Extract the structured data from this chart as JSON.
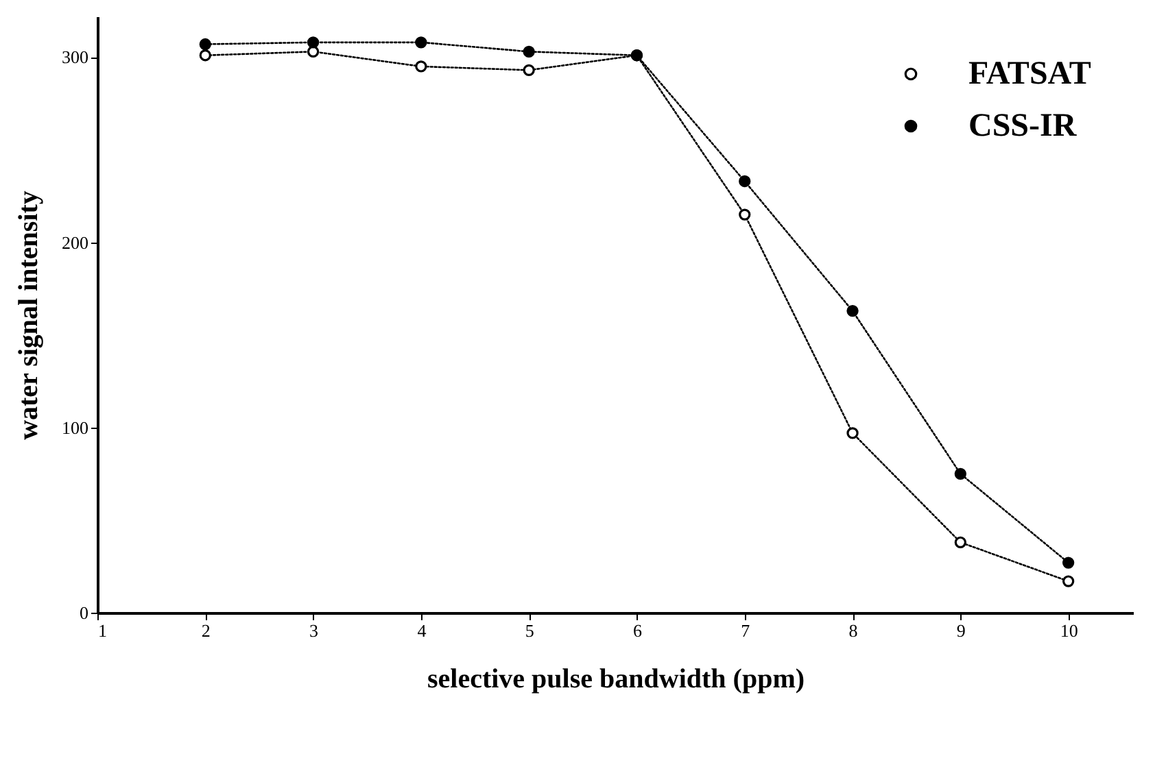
{
  "chart_data": {
    "type": "line",
    "xlabel": "selective pulse bandwidth (ppm)",
    "ylabel": "water signal intensity",
    "x": [
      2,
      3,
      4,
      5,
      6,
      7,
      8,
      9,
      10
    ],
    "series": [
      {
        "name": "FATSAT",
        "color": "#000000",
        "values": [
          301,
          303,
          295,
          293,
          301,
          215,
          97,
          38,
          17
        ]
      },
      {
        "name": "CSS-IR",
        "color": "#000000",
        "values": [
          307,
          308,
          308,
          303,
          301,
          233,
          163,
          75,
          27
        ]
      }
    ],
    "xlim": [
      1,
      10.6
    ],
    "xticks": [
      1,
      2,
      3,
      4,
      5,
      6,
      7,
      8,
      9,
      10
    ],
    "ylim": [
      0,
      322
    ],
    "yticks": [
      0,
      100,
      200,
      300
    ],
    "grid": false,
    "legend": "top right",
    "marker": "circle",
    "line_style": "dotted"
  }
}
